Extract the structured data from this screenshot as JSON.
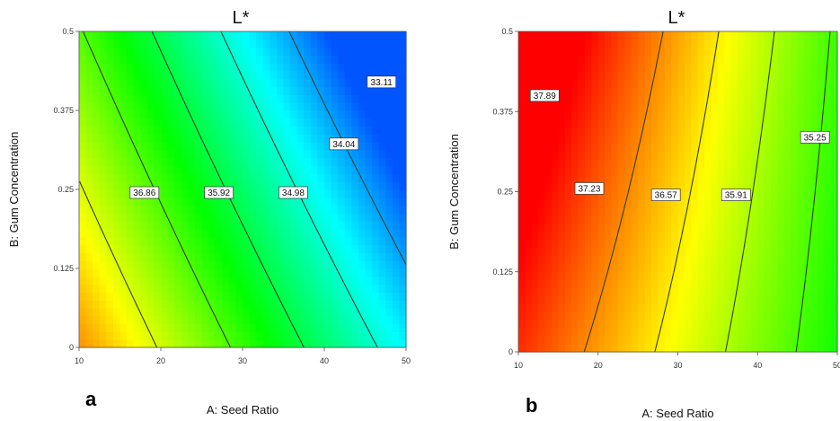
{
  "chart_data": [
    {
      "type": "contour",
      "panel_label": "a",
      "title": "L*",
      "xlabel": "A: Seed Ratio",
      "ylabel": "B: Gum Concentration",
      "xlim": [
        10,
        50
      ],
      "ylim": [
        0,
        0.5
      ],
      "x_ticks": [
        "10",
        "20",
        "30",
        "40",
        "50"
      ],
      "y_ticks": [
        "0",
        "0.125",
        "0.25",
        "0.375",
        "0.5"
      ],
      "color_scale": {
        "min": 32.6,
        "max": 38.8,
        "low_color": "#0055ff",
        "high_color": "#ff0000"
      },
      "surface": {
        "b0": 38.9,
        "bx": -0.1045,
        "by": -3.62,
        "bxy": -0.014
      },
      "contours": [
        {
          "level": 36.86,
          "label": "36.86",
          "label_at": {
            "x": 18,
            "y": 0.245
          }
        },
        {
          "level": 35.92,
          "label": "35.92",
          "label_at": {
            "x": 27.1,
            "y": 0.245
          }
        },
        {
          "level": 34.98,
          "label": "34.98",
          "label_at": {
            "x": 36.2,
            "y": 0.245
          }
        },
        {
          "level": 34.04,
          "label": "34.04",
          "label_at": {
            "x": 42.4,
            "y": 0.322
          }
        },
        {
          "level": 33.11,
          "label": "33.11",
          "label_at": {
            "x": 47,
            "y": 0.42
          }
        }
      ]
    },
    {
      "type": "contour",
      "panel_label": "b",
      "title": "L*",
      "xlabel": "A: Seed Ratio",
      "ylabel": "B: Gum Concentration",
      "xlim": [
        10,
        50
      ],
      "ylim": [
        0,
        0.5
      ],
      "x_ticks": [
        "10",
        "20",
        "30",
        "40",
        "50"
      ],
      "y_ticks": [
        "0",
        "0.125",
        "0.25",
        "0.375",
        "0.5"
      ],
      "color_scale": {
        "min": 32.6,
        "max": 38.8,
        "low_color": "#0055ff",
        "high_color": "#ff0000"
      },
      "surface": {
        "b0": 39.25,
        "bx": -0.0745,
        "by": 2.6,
        "bxy": -0.04
      },
      "contours": [
        {
          "level": 37.89,
          "label": "37.89",
          "label_at": {
            "x": 13.3,
            "y": 0.4
          }
        },
        {
          "level": 37.23,
          "label": "37.23",
          "label_at": {
            "x": 18.9,
            "y": 0.255
          }
        },
        {
          "level": 36.57,
          "label": "36.57",
          "label_at": {
            "x": 28.5,
            "y": 0.245
          }
        },
        {
          "level": 35.91,
          "label": "35.91",
          "label_at": {
            "x": 37.3,
            "y": 0.245
          }
        },
        {
          "level": 35.25,
          "label": "35.25",
          "label_at": {
            "x": 47.2,
            "y": 0.335
          }
        }
      ]
    }
  ]
}
